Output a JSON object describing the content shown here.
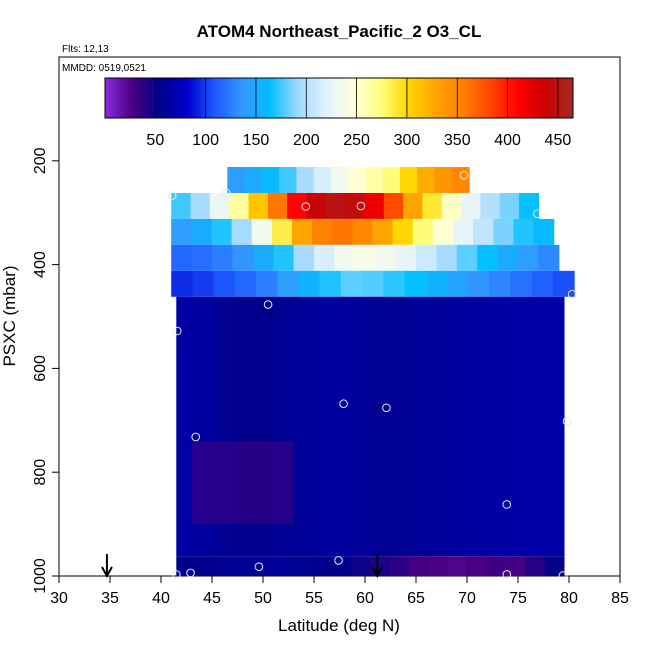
{
  "chart_data": {
    "type": "heatmap",
    "title": "ATOM4 Northeast_Pacific_2 O3_CL",
    "notes": {
      "flights": "Flts: 12,13",
      "dates": "MMDD: 0519,0521"
    },
    "xlabel": "Latitude (deg N)",
    "ylabel": "PSXC (mbar)",
    "xlim": [
      30,
      85
    ],
    "ylim": [
      1000,
      0
    ],
    "x_ticks": [
      "30",
      "35",
      "40",
      "45",
      "50",
      "55",
      "60",
      "65",
      "70",
      "75",
      "80",
      "85"
    ],
    "y_ticks": [
      "200",
      "400",
      "600",
      "800",
      "1000"
    ],
    "colorbar": {
      "range": [
        0,
        465
      ],
      "tick_labels": [
        "50",
        "100",
        "150",
        "200",
        "250",
        "300",
        "350",
        "400",
        "450"
      ],
      "colors": [
        "#8a2be2",
        "#4b0082",
        "#00008b",
        "#0000cd",
        "#1e5aff",
        "#3399ff",
        "#00bfff",
        "#9fd8ff",
        "#e0f2ff",
        "#ffffe0",
        "#ffff80",
        "#ffd700",
        "#ffa500",
        "#ff8000",
        "#ff4500",
        "#ff0000",
        "#cc0000",
        "#a52a2a"
      ]
    },
    "rows": [
      {
        "p_min": 212,
        "p_max": 262,
        "lat_min": 46.5,
        "lat_max": 70.2,
        "values": [
          140,
          148,
          160,
          175,
          195,
          215,
          235,
          250,
          262,
          275,
          300,
          325,
          340,
          350
        ]
      },
      {
        "p_min": 262,
        "p_max": 312,
        "lat_min": 41.0,
        "lat_max": 77.0,
        "values": [
          175,
          195,
          230,
          265,
          310,
          360,
          410,
          440,
          450,
          445,
          420,
          380,
          330,
          290,
          255,
          225,
          200,
          185,
          165
        ]
      },
      {
        "p_min": 312,
        "p_max": 362,
        "lat_min": 41.0,
        "lat_max": 78.5,
        "values": [
          140,
          150,
          170,
          195,
          235,
          285,
          330,
          355,
          360,
          350,
          330,
          300,
          275,
          250,
          225,
          205,
          185,
          170,
          160
        ]
      },
      {
        "p_min": 362,
        "p_max": 412,
        "lat_min": 41.0,
        "lat_max": 79.0,
        "values": [
          115,
          118,
          125,
          135,
          150,
          170,
          195,
          215,
          235,
          240,
          235,
          225,
          210,
          195,
          180,
          165,
          150,
          140,
          130
        ]
      },
      {
        "p_min": 412,
        "p_max": 462,
        "lat_min": 41.0,
        "lat_max": 80.5,
        "values": [
          95,
          100,
          108,
          115,
          125,
          140,
          155,
          170,
          180,
          178,
          172,
          165,
          155,
          145,
          135,
          128,
          120,
          112,
          106
        ]
      },
      {
        "p_min": 462,
        "p_max": 962,
        "lat_min": 41.5,
        "lat_max": 79.5,
        "values": [
          65,
          62,
          58,
          55,
          55,
          58,
          60,
          62,
          62,
          60,
          58,
          58,
          60,
          60,
          62,
          64,
          65,
          66,
          67,
          68
        ]
      },
      {
        "p_min": 962,
        "p_max": 1000,
        "lat_min": 41.5,
        "lat_max": 79.5,
        "values": [
          55,
          55,
          58,
          58,
          60,
          60,
          58,
          56,
          54,
          50,
          45,
          38,
          30,
          28,
          25,
          28,
          32,
          30,
          40,
          52
        ]
      }
    ],
    "low_level_patch": {
      "lat_min": 43.0,
      "lat_max": 53.0,
      "p_min": 740,
      "p_max": 900,
      "value": 30
    },
    "sample_points": [
      {
        "lat": 69.7,
        "p": 228
      },
      {
        "lat": 46.4,
        "p": 262
      },
      {
        "lat": 41.1,
        "p": 267
      },
      {
        "lat": 54.2,
        "p": 288
      },
      {
        "lat": 59.6,
        "p": 287
      },
      {
        "lat": 76.9,
        "p": 302
      },
      {
        "lat": 80.3,
        "p": 457
      },
      {
        "lat": 50.5,
        "p": 477
      },
      {
        "lat": 41.6,
        "p": 528
      },
      {
        "lat": 57.9,
        "p": 668
      },
      {
        "lat": 62.1,
        "p": 676
      },
      {
        "lat": 79.8,
        "p": 702
      },
      {
        "lat": 43.4,
        "p": 732
      },
      {
        "lat": 73.9,
        "p": 862
      },
      {
        "lat": 57.4,
        "p": 970
      },
      {
        "lat": 49.6,
        "p": 982
      },
      {
        "lat": 41.5,
        "p": 997
      },
      {
        "lat": 42.9,
        "p": 994
      },
      {
        "lat": 73.9,
        "p": 997
      },
      {
        "lat": 79.4,
        "p": 999
      }
    ],
    "arrows": [
      {
        "lat": 34.7
      },
      {
        "lat": 61.2
      }
    ]
  }
}
